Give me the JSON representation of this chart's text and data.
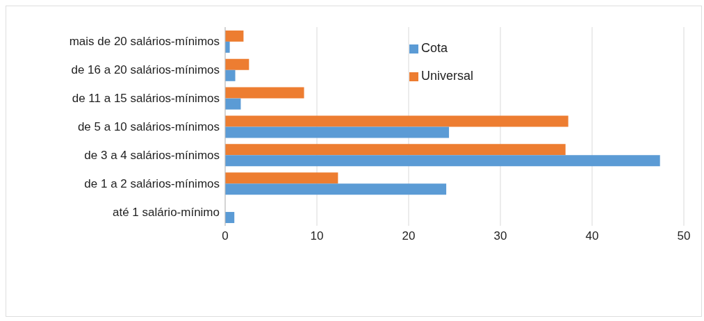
{
  "chart_data": {
    "type": "bar",
    "orientation": "horizontal",
    "categories": [
      "mais de 20 salários-mínimos",
      "de 16 a 20 salários-mínimos",
      "de 11 a 15 salários-mínimos",
      "de 5 a 10 salários-mínimos",
      "de 3 a 4 salários-mínimos",
      "de 1 a 2 salários-mínimos",
      "até 1 salário-mínimo"
    ],
    "series": [
      {
        "name": "Universal",
        "color": "#ed7d31",
        "values": [
          2.0,
          2.6,
          8.6,
          37.4,
          37.1,
          12.3,
          0
        ]
      },
      {
        "name": "Cota",
        "color": "#5b9bd5",
        "values": [
          0.5,
          1.1,
          1.7,
          24.4,
          47.4,
          24.1,
          1.0
        ]
      }
    ],
    "xlim": [
      0,
      50
    ],
    "xticks": [
      0,
      10,
      20,
      30,
      40,
      50
    ],
    "grid": "x",
    "legend": "top right"
  }
}
